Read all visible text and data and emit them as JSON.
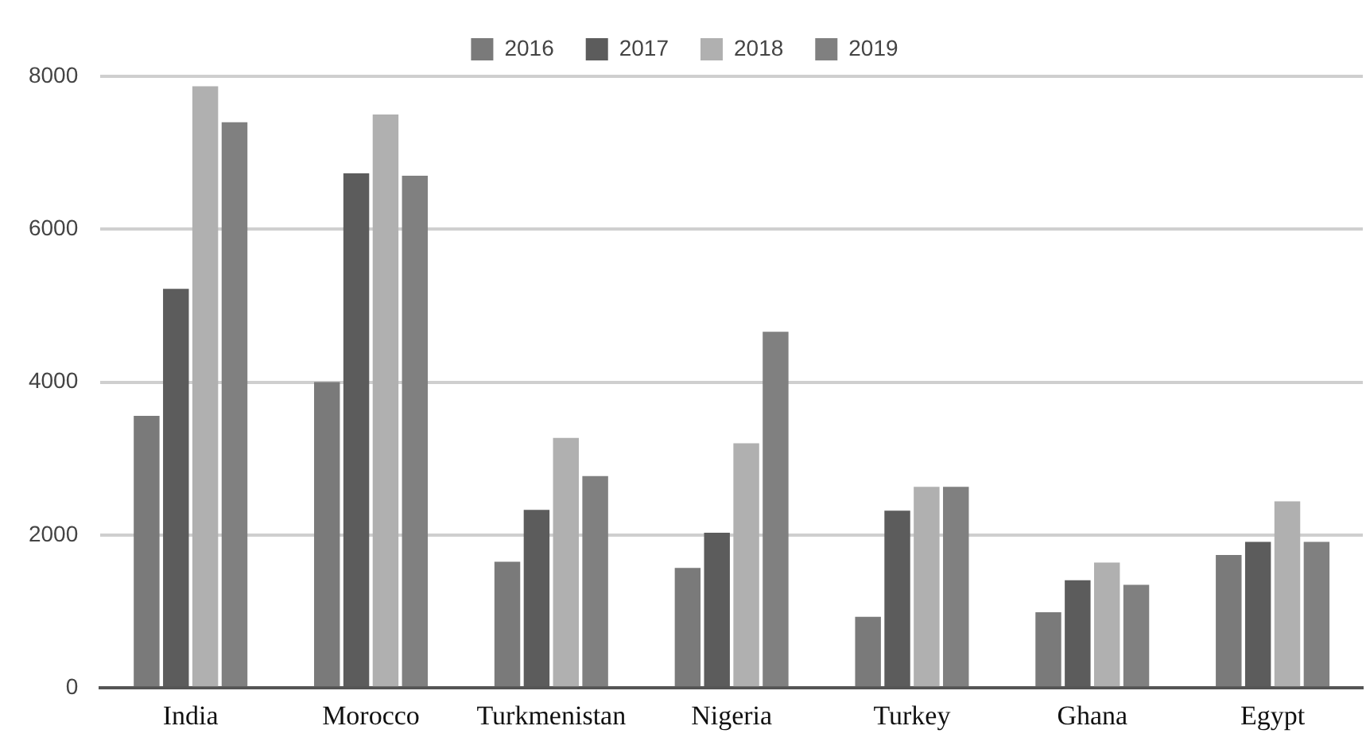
{
  "chart_data": {
    "type": "bar",
    "categories": [
      "India",
      "Morocco",
      "Turkmenistan",
      "Nigeria",
      "Turkey",
      "Ghana",
      "Egypt"
    ],
    "series": [
      {
        "name": "2016",
        "color": "#7a7a7a",
        "values": [
          3560,
          4000,
          1650,
          1570,
          930,
          990,
          1740
        ]
      },
      {
        "name": "2017",
        "color": "#5c5c5c",
        "values": [
          5220,
          6730,
          2330,
          2030,
          2320,
          1410,
          1910
        ]
      },
      {
        "name": "2018",
        "color": "#b0b0b0",
        "values": [
          7870,
          7500,
          3270,
          3200,
          2630,
          1640,
          2440
        ]
      },
      {
        "name": "2019",
        "color": "#808080",
        "values": [
          7400,
          6700,
          2770,
          4660,
          2630,
          1350,
          1910
        ]
      }
    ],
    "ylim": [
      0,
      8000
    ],
    "yticks": [
      0,
      2000,
      4000,
      6000,
      8000
    ],
    "grid": "y",
    "legend": "top"
  }
}
